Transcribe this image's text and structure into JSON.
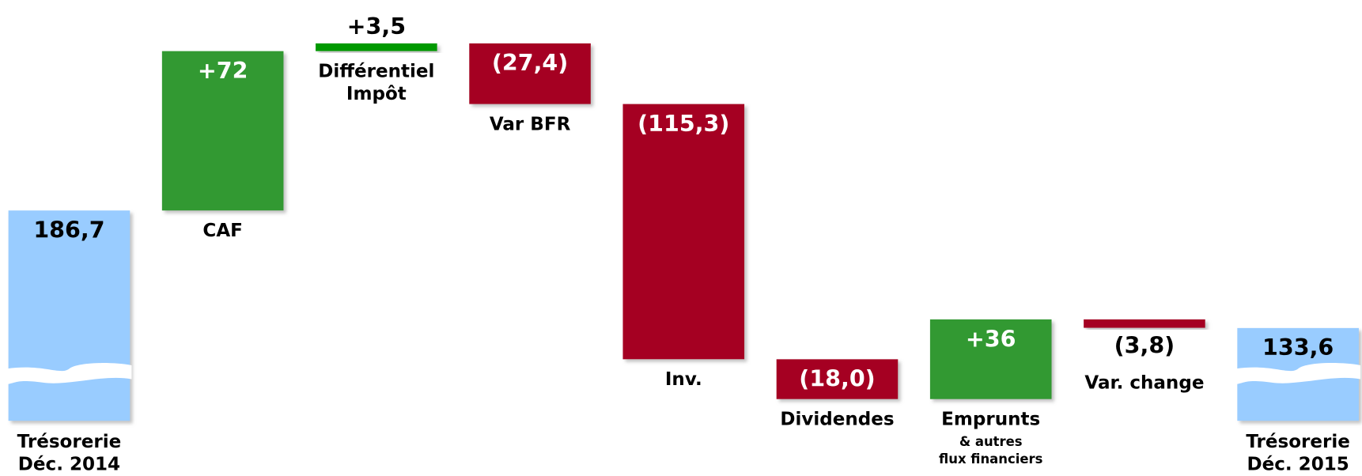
{
  "chart_data": {
    "type": "waterfall",
    "categories": [
      [
        "Trésorerie",
        "Déc. 2014"
      ],
      [
        "CAF"
      ],
      [
        "Différentiel",
        "Impôt"
      ],
      [
        "Var BFR"
      ],
      [
        "Inv."
      ],
      [
        "Dividendes"
      ],
      [
        "Emprunts",
        "& autres",
        "flux financiers"
      ],
      [
        "Var. change"
      ],
      [
        "Trésorerie",
        "Déc. 2015"
      ]
    ],
    "values": [
      186.7,
      72,
      3.5,
      -27.4,
      -115.3,
      -18.0,
      36,
      -3.8,
      133.6
    ],
    "value_labels": [
      "186,7",
      "+72",
      "+3,5",
      "(27,4)",
      "(115,3)",
      "(18,0)",
      "+36",
      "(3,8)",
      "133,6"
    ],
    "kinds": [
      "total",
      "delta",
      "delta",
      "delta",
      "delta",
      "delta",
      "delta",
      "delta",
      "total"
    ],
    "colors": [
      "#99ccff",
      "#339933",
      "#009900",
      "#a50021",
      "#a50021",
      "#a50021",
      "#339933",
      "#a50021",
      "#99ccff"
    ]
  }
}
